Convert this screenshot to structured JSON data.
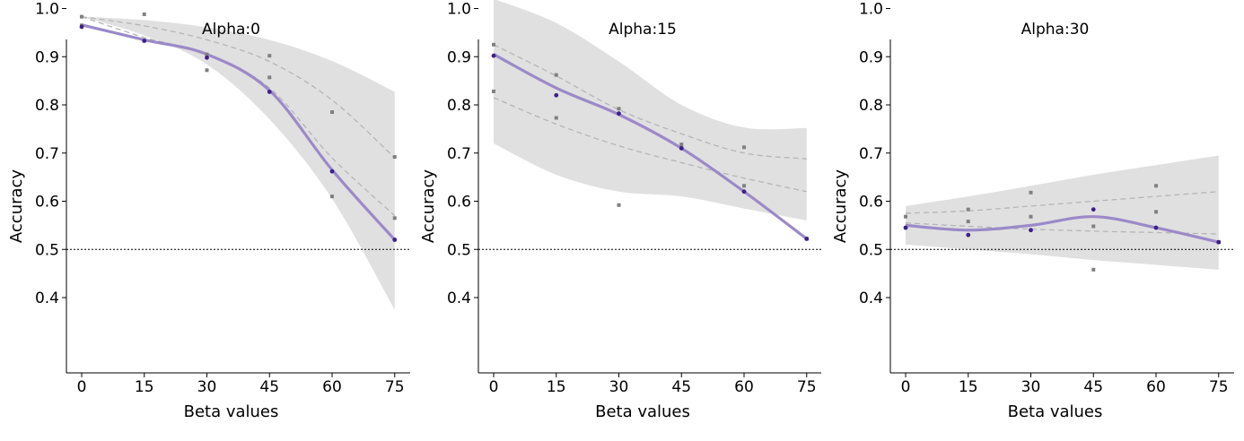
{
  "chart_data": [
    {
      "type": "line",
      "title": "Alpha:0",
      "xlabel": "Beta values",
      "ylabel": "Accuracy",
      "x": [
        0,
        15,
        30,
        45,
        60,
        75
      ],
      "ylim": [
        0.35,
        1.05
      ],
      "yticks": [
        "0.4",
        "0.5",
        "0.6",
        "0.7",
        "0.8",
        "0.9",
        "1.0"
      ],
      "xticks": [
        "0",
        "15",
        "30",
        "45",
        "60",
        "75"
      ],
      "reference_line": 0.5,
      "band_upper": [
        0.983,
        0.976,
        0.961,
        0.935,
        0.891,
        0.827
      ],
      "band_lower": [
        0.983,
        0.944,
        0.884,
        0.77,
        0.605,
        0.375
      ],
      "mean_fit": [
        0.966,
        0.935,
        0.905,
        0.83,
        0.665,
        0.52
      ],
      "dashed_fits": [
        [
          0.983,
          0.964,
          0.935,
          0.89,
          0.81,
          0.69
        ],
        [
          0.983,
          0.94,
          0.905,
          0.835,
          0.69,
          0.57
        ]
      ],
      "points_primary": [
        0.962,
        0.933,
        0.898,
        0.827,
        0.662,
        0.52
      ],
      "points_secondary": [
        [
          0.983,
          0.988,
          0.872,
          0.902,
          0.785,
          0.692
        ],
        [
          0.965,
          0.933,
          0.905,
          0.857,
          0.61,
          0.565
        ]
      ],
      "colors": {
        "mean": "#9b89c8",
        "point": "#3d1f8a",
        "secondary": "#808080",
        "band": "#e0e0e0",
        "dashed": "#b5b5b5"
      }
    },
    {
      "type": "line",
      "title": "Alpha:15",
      "xlabel": "Beta values",
      "ylabel": "Accuracy",
      "x": [
        0,
        15,
        30,
        45,
        60,
        75
      ],
      "ylim": [
        0.35,
        1.05
      ],
      "yticks": [
        "0.4",
        "0.5",
        "0.6",
        "0.7",
        "0.8",
        "0.9",
        "1.0"
      ],
      "xticks": [
        "0",
        "15",
        "30",
        "45",
        "60",
        "75"
      ],
      "reference_line": 0.5,
      "band_upper": [
        1.02,
        0.97,
        0.89,
        0.8,
        0.753,
        0.752
      ],
      "band_lower": [
        0.72,
        0.655,
        0.62,
        0.61,
        0.585,
        0.56
      ],
      "mean_fit": [
        0.905,
        0.835,
        0.78,
        0.71,
        0.62,
        0.522
      ],
      "dashed_fits": [
        [
          0.925,
          0.86,
          0.79,
          0.74,
          0.7,
          0.688
        ],
        [
          0.815,
          0.76,
          0.715,
          0.68,
          0.648,
          0.62
        ]
      ],
      "points_primary": [
        0.902,
        0.82,
        0.782,
        0.71,
        0.62,
        0.522
      ],
      "points_secondary": [
        [
          0.925,
          0.862,
          0.792,
          0.718,
          0.712,
          0.522
        ],
        [
          0.828,
          0.773,
          0.592,
          0.71,
          0.632,
          0.522
        ]
      ],
      "colors": {
        "mean": "#9b89c8",
        "point": "#3d1f8a",
        "secondary": "#808080",
        "band": "#e0e0e0",
        "dashed": "#b5b5b5"
      }
    },
    {
      "type": "line",
      "title": "Alpha:30",
      "xlabel": "Beta values",
      "ylabel": "Accuracy",
      "x": [
        0,
        15,
        30,
        45,
        60,
        75
      ],
      "ylim": [
        0.35,
        1.05
      ],
      "yticks": [
        "0.4",
        "0.5",
        "0.6",
        "0.7",
        "0.8",
        "0.9",
        "1.0"
      ],
      "xticks": [
        "0",
        "15",
        "30",
        "45",
        "60",
        "75"
      ],
      "reference_line": 0.5,
      "band_upper": [
        0.59,
        0.61,
        0.632,
        0.655,
        0.675,
        0.695
      ],
      "band_lower": [
        0.51,
        0.5,
        0.49,
        0.478,
        0.468,
        0.458
      ],
      "mean_fit": [
        0.55,
        0.54,
        0.55,
        0.568,
        0.545,
        0.515
      ],
      "dashed_fits": [
        [
          0.575,
          0.58,
          0.59,
          0.6,
          0.61,
          0.62
        ],
        [
          0.555,
          0.548,
          0.542,
          0.538,
          0.535,
          0.532
        ]
      ],
      "points_primary": [
        0.545,
        0.53,
        0.54,
        0.583,
        0.545,
        0.515
      ],
      "points_secondary": [
        [
          0.568,
          0.583,
          0.618,
          0.548,
          0.632,
          0.515
        ],
        [
          0.545,
          0.558,
          0.568,
          0.458,
          0.578,
          0.515
        ]
      ],
      "colors": {
        "mean": "#9b89c8",
        "point": "#3d1f8a",
        "secondary": "#808080",
        "band": "#e0e0e0",
        "dashed": "#b5b5b5"
      }
    }
  ]
}
